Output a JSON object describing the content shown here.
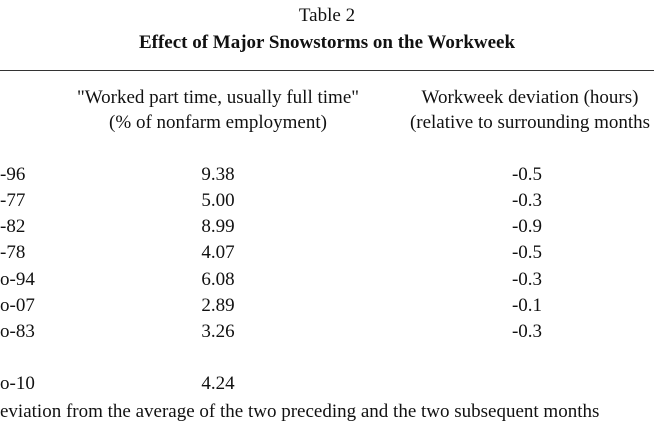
{
  "header": {
    "title": "Table 2",
    "subtitle": "Effect of Major Snowstorms on the Workweek"
  },
  "table": {
    "columns": [
      [
        "\"Worked part time, usually full time\"",
        "(% of nonfarm employment)"
      ],
      [
        "Workweek deviation (hours)",
        "(relative to surrounding months"
      ]
    ],
    "rows": [
      [
        "-96",
        "9.38",
        "-0.5"
      ],
      [
        "-77",
        "5.00",
        "-0.3"
      ],
      [
        "-82",
        "8.99",
        "-0.9"
      ],
      [
        "-78",
        "4.07",
        "-0.5"
      ],
      [
        "o-94",
        "6.08",
        "-0.3"
      ],
      [
        "o-07",
        "2.89",
        "-0.1"
      ],
      [
        "o-83",
        "3.26",
        "-0.3"
      ],
      [
        "o-10",
        "4.24"
      ]
    ]
  },
  "footnote": "eviation from the average of the two preceding and the two subsequent months"
}
